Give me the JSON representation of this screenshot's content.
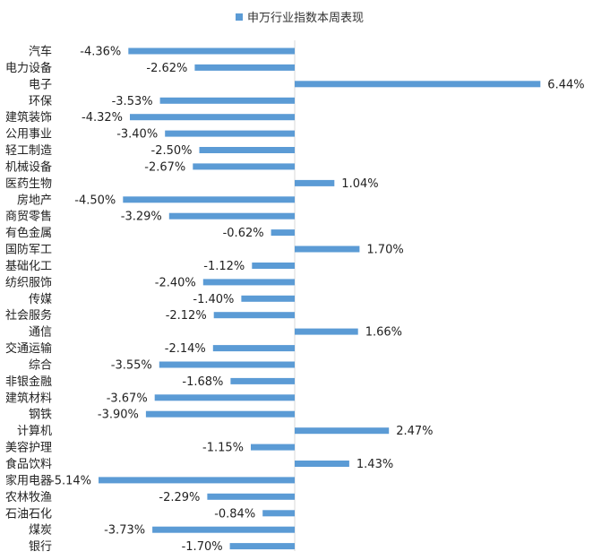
{
  "chart_data": {
    "type": "bar",
    "orientation": "horizontal",
    "legend": {
      "label": "申万行业指数本周表现",
      "position": "top"
    },
    "series": [
      {
        "name": "申万行业指数本周表现",
        "color": "#5B9BD5",
        "values": [
          -4.36,
          -2.62,
          6.44,
          -3.53,
          -4.32,
          -3.4,
          -2.5,
          -2.67,
          1.04,
          -4.5,
          -3.29,
          -0.62,
          1.7,
          -1.12,
          -2.4,
          -1.4,
          -2.12,
          1.66,
          -2.14,
          -3.55,
          -1.68,
          -3.67,
          -3.9,
          2.47,
          -1.15,
          1.43,
          -5.14,
          -2.29,
          -0.84,
          -3.73,
          -1.7
        ],
        "labels": [
          "-4.36%",
          "-2.62%",
          "6.44%",
          "-3.53%",
          "-4.32%",
          "-3.40%",
          "-2.50%",
          "-2.67%",
          "1.04%",
          "-4.50%",
          "-3.29%",
          "-0.62%",
          "1.70%",
          "-1.12%",
          "-2.40%",
          "-1.40%",
          "-2.12%",
          "1.66%",
          "-2.14%",
          "-3.55%",
          "-1.68%",
          "-3.67%",
          "-3.90%",
          "2.47%",
          "-1.15%",
          "1.43%",
          "-5.14%",
          "-2.29%",
          "-0.84%",
          "-3.73%",
          "-1.70%"
        ]
      }
    ],
    "categories": [
      "汽车",
      "电力设备",
      "电子",
      "环保",
      "建筑装饰",
      "公用事业",
      "轻工制造",
      "机械设备",
      "医药生物",
      "房地产",
      "商贸零售",
      "有色金属",
      "国防军工",
      "基础化工",
      "纺织服饰",
      "传媒",
      "社会服务",
      "通信",
      "交通运输",
      "综合",
      "非银金融",
      "建筑材料",
      "钢铁",
      "计算机",
      "美容护理",
      "食品饮料",
      "家用电器",
      "农林牧渔",
      "石油石化",
      "煤炭",
      "银行"
    ],
    "xlim": [
      -5.3,
      6.6
    ],
    "grid": false
  }
}
